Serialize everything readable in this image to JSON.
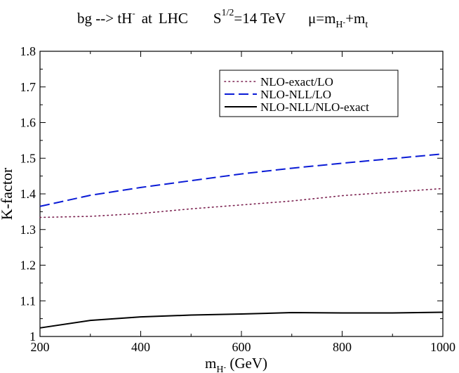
{
  "chart_data": {
    "type": "line",
    "title": {
      "process": "bg --> tH",
      "process_sup": "-",
      "at_word": "at",
      "collider": "LHC",
      "energy_base": "S",
      "energy_sup": "1/2",
      "energy_value": "=14 TeV",
      "scale_base": "μ=m",
      "scale_sub1": "H",
      "scale_sub1_sup": "-",
      "scale_plus": "+m",
      "scale_sub2": "t"
    },
    "xlabel": {
      "base": "m",
      "sub": "H",
      "sub_sup": "-",
      "unit": " (GeV)"
    },
    "ylabel": "K-factor",
    "xlim": [
      200,
      1000
    ],
    "ylim": [
      1.0,
      1.8
    ],
    "xticks": [
      200,
      400,
      600,
      800,
      1000
    ],
    "xtick_labels": [
      "200",
      "400",
      "600",
      "800",
      "1000"
    ],
    "yticks": [
      1.0,
      1.1,
      1.2,
      1.3,
      1.4,
      1.5,
      1.6,
      1.7,
      1.8
    ],
    "ytick_labels": [
      "1",
      "1.1",
      "1.2",
      "1.3",
      "1.4",
      "1.5",
      "1.6",
      "1.7",
      "1.8"
    ],
    "legend_position": "top-right",
    "series": [
      {
        "name": "NLO-exact/LO",
        "style": "dotted",
        "color": "#7a1f4e",
        "x": [
          200,
          300,
          400,
          500,
          600,
          700,
          800,
          900,
          1000
        ],
        "y": [
          1.334,
          1.337,
          1.345,
          1.358,
          1.369,
          1.38,
          1.395,
          1.405,
          1.415
        ]
      },
      {
        "name": "NLO-NLL/LO",
        "style": "dashed",
        "color": "#0a1bd6",
        "x": [
          200,
          300,
          400,
          500,
          600,
          700,
          800,
          900,
          1000
        ],
        "y": [
          1.365,
          1.396,
          1.418,
          1.437,
          1.456,
          1.472,
          1.486,
          1.499,
          1.512
        ]
      },
      {
        "name": "NLO-NLL/NLO-exact",
        "style": "solid",
        "color": "#000000",
        "x": [
          200,
          300,
          400,
          500,
          600,
          700,
          800,
          900,
          1000
        ],
        "y": [
          1.024,
          1.045,
          1.055,
          1.06,
          1.063,
          1.067,
          1.066,
          1.066,
          1.068
        ]
      }
    ]
  }
}
